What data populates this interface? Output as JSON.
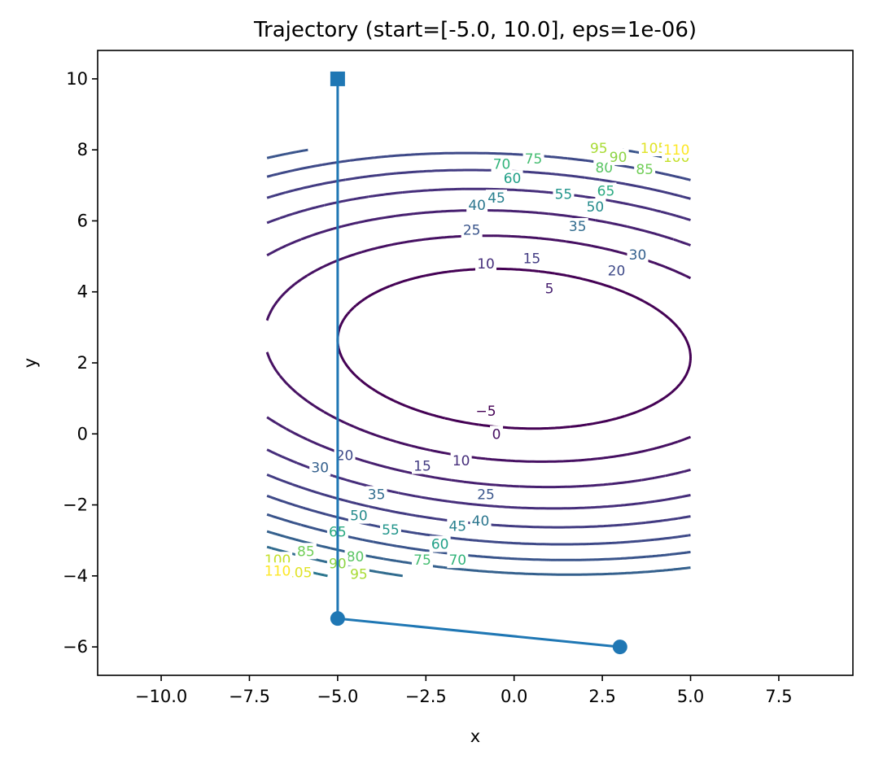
{
  "chart_data": {
    "type": "line",
    "title": "Trajectory (start=[-5.0, 10.0], eps=1e-06)",
    "xlabel": "x",
    "ylabel": "y",
    "xlim": [
      -11.8,
      9.6
    ],
    "ylim": [
      -6.8,
      10.8
    ],
    "x_ticks": [
      -10.0,
      -7.5,
      -5.0,
      -2.5,
      0.0,
      2.5,
      5.0,
      7.5
    ],
    "x_tick_labels": [
      "−10.0",
      "−7.5",
      "−5.0",
      "−2.5",
      "0.0",
      "2.5",
      "5.0",
      "7.5"
    ],
    "y_ticks": [
      -6,
      -4,
      -2,
      0,
      2,
      4,
      6,
      8,
      10
    ],
    "y_tick_labels": [
      "−6",
      "−4",
      "−2",
      "0",
      "2",
      "4",
      "6",
      "8",
      "10"
    ],
    "grid": false,
    "contour": {
      "function": "z = x^2/5 + (y - 2.4 + x/20)^2 - 10",
      "x_range": [
        -7,
        5
      ],
      "y_range": [
        -4,
        8
      ],
      "levels": [
        -5,
        0,
        5,
        10,
        15,
        20,
        25,
        30,
        35,
        40,
        45,
        50,
        55,
        60,
        65,
        70,
        75,
        80,
        85,
        90,
        95,
        100,
        105,
        110
      ],
      "colormap": "viridis",
      "labels": [
        {
          "text": "−5",
          "x": -0.8,
          "y": 0.65,
          "level": -5
        },
        {
          "text": "0",
          "x": -0.5,
          "y": 0.0,
          "level": 0
        },
        {
          "text": "5",
          "x": 1.0,
          "y": 4.1,
          "level": 5
        },
        {
          "text": "10",
          "x": -1.5,
          "y": -0.75,
          "level": 10
        },
        {
          "text": "10",
          "x": -0.8,
          "y": 4.8,
          "level": 10
        },
        {
          "text": "15",
          "x": 0.5,
          "y": 4.95,
          "level": 15
        },
        {
          "text": "15",
          "x": -2.6,
          "y": -0.9,
          "level": 15
        },
        {
          "text": "20",
          "x": 2.9,
          "y": 4.6,
          "level": 20
        },
        {
          "text": "20",
          "x": -4.8,
          "y": -0.6,
          "level": 20
        },
        {
          "text": "25",
          "x": -1.2,
          "y": 5.75,
          "level": 25
        },
        {
          "text": "25",
          "x": -0.8,
          "y": -1.7,
          "level": 25
        },
        {
          "text": "30",
          "x": 3.5,
          "y": 5.05,
          "level": 30
        },
        {
          "text": "30",
          "x": -5.5,
          "y": -0.95,
          "level": 30
        },
        {
          "text": "35",
          "x": 1.8,
          "y": 5.85,
          "level": 35
        },
        {
          "text": "35",
          "x": -3.9,
          "y": -1.7,
          "level": 35
        },
        {
          "text": "40",
          "x": -1.05,
          "y": 6.45,
          "level": 40
        },
        {
          "text": "40",
          "x": -0.95,
          "y": -2.45,
          "level": 40
        },
        {
          "text": "45",
          "x": -0.5,
          "y": 6.65,
          "level": 45
        },
        {
          "text": "45",
          "x": -1.6,
          "y": -2.6,
          "level": 45
        },
        {
          "text": "50",
          "x": 2.3,
          "y": 6.4,
          "level": 50
        },
        {
          "text": "50",
          "x": -4.4,
          "y": -2.3,
          "level": 50
        },
        {
          "text": "55",
          "x": 1.4,
          "y": 6.75,
          "level": 55
        },
        {
          "text": "55",
          "x": -3.5,
          "y": -2.7,
          "level": 55
        },
        {
          "text": "60",
          "x": -0.05,
          "y": 7.2,
          "level": 60
        },
        {
          "text": "60",
          "x": -2.1,
          "y": -3.1,
          "level": 60
        },
        {
          "text": "65",
          "x": 2.6,
          "y": 6.85,
          "level": 65
        },
        {
          "text": "65",
          "x": -5.0,
          "y": -2.75,
          "level": 65
        },
        {
          "text": "70",
          "x": -0.35,
          "y": 7.6,
          "level": 70
        },
        {
          "text": "70",
          "x": -1.6,
          "y": -3.55,
          "level": 70
        },
        {
          "text": "75",
          "x": 0.55,
          "y": 7.75,
          "level": 75
        },
        {
          "text": "75",
          "x": -2.6,
          "y": -3.55,
          "level": 75
        },
        {
          "text": "80",
          "x": 2.55,
          "y": 7.5,
          "level": 80
        },
        {
          "text": "80",
          "x": -4.5,
          "y": -3.45,
          "level": 80
        },
        {
          "text": "85",
          "x": 3.7,
          "y": 7.45,
          "level": 85
        },
        {
          "text": "85",
          "x": -5.9,
          "y": -3.3,
          "level": 85
        },
        {
          "text": "90",
          "x": 2.95,
          "y": 7.8,
          "level": 90
        },
        {
          "text": "90",
          "x": -5.0,
          "y": -3.65,
          "level": 90
        },
        {
          "text": "95",
          "x": 2.4,
          "y": 8.05,
          "level": 95
        },
        {
          "text": "95",
          "x": -4.4,
          "y": -3.95,
          "level": 95
        },
        {
          "text": "100",
          "x": 4.6,
          "y": 7.8,
          "level": 100
        },
        {
          "text": "100",
          "x": -6.7,
          "y": -3.55,
          "level": 100
        },
        {
          "text": "105",
          "x": 3.95,
          "y": 8.05,
          "level": 105
        },
        {
          "text": "105",
          "x": -6.1,
          "y": -3.9,
          "level": 105
        },
        {
          "text": "110",
          "x": 4.6,
          "y": 8.0,
          "level": 110
        },
        {
          "text": "110",
          "x": -6.7,
          "y": -3.85,
          "level": 110
        }
      ]
    },
    "series": [
      {
        "x": [
          -5.0,
          -5.0,
          3.0
        ],
        "y": [
          10.0,
          -5.2,
          -6.0
        ],
        "color": "#1f77b4",
        "markers": [
          "square",
          "circle",
          "circle"
        ]
      }
    ]
  }
}
